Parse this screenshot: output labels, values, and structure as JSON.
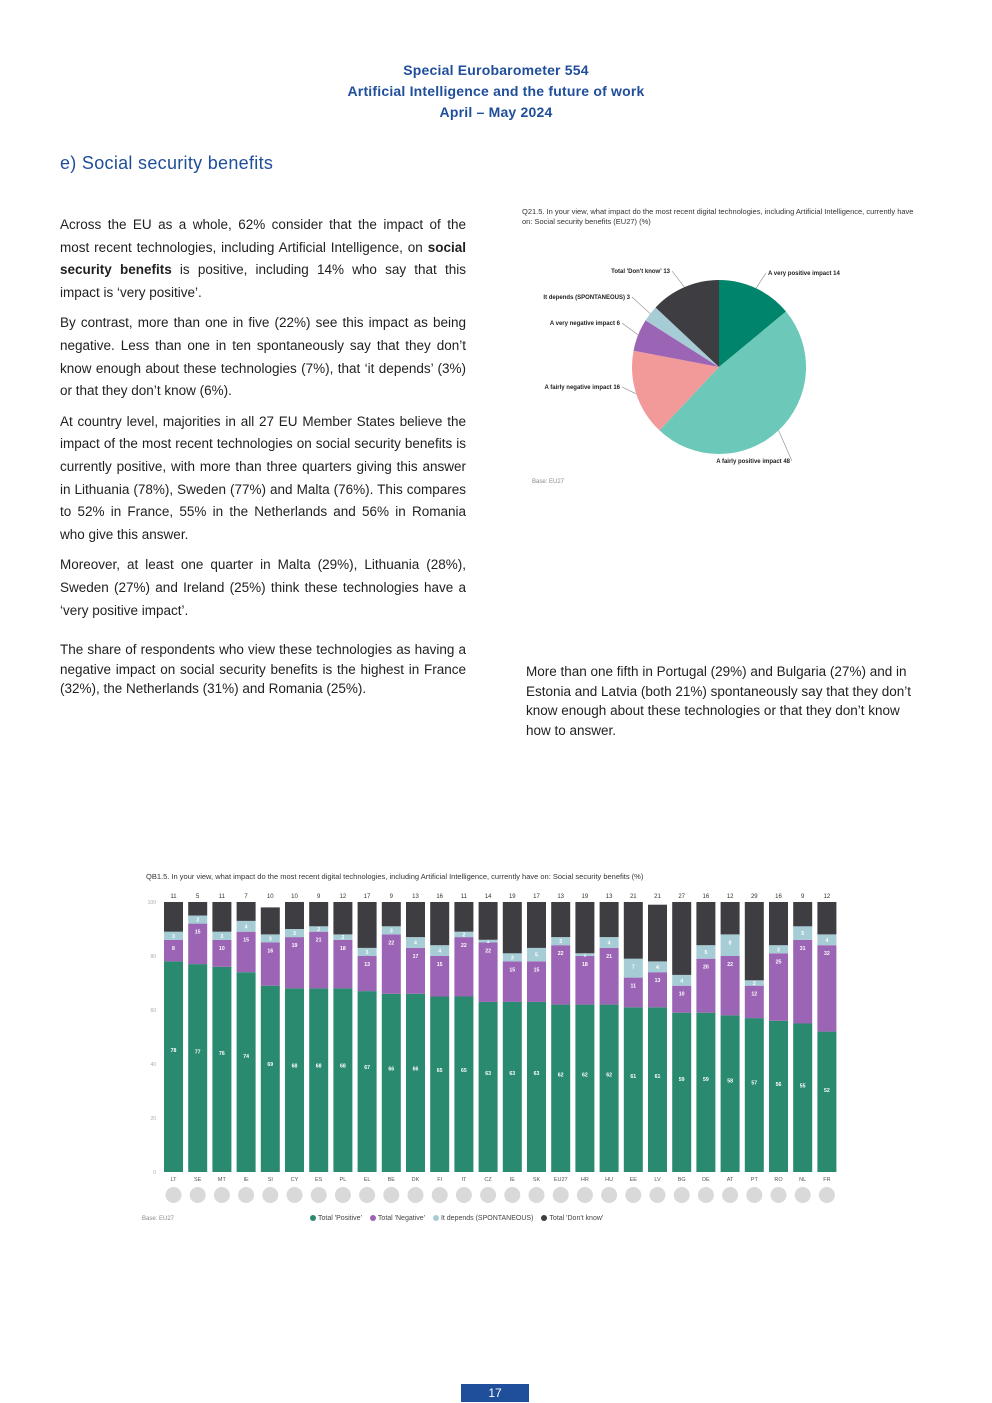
{
  "header": {
    "line1": "Special Eurobarometer 554",
    "line2": "Artificial Intelligence and the future of work",
    "line3": "April – May 2024"
  },
  "section_title": "e)  Social security benefits",
  "paragraphs": {
    "p1_before": "Across the EU as a whole, 62% consider that the impact of the most recent technologies, including Artificial Intelligence, on ",
    "p1_bold": "social security benefits",
    "p1_after": " is positive, including 14% who say that this impact is ‘very positive’.",
    "p2": "By contrast, more than one in five (22%) see this impact as being negative. Less than one in ten spontaneously say that they don’t know enough about these technologies (7%), that ‘it depends’ (3%) or that they don’t know (6%).",
    "p3": "At country level, majorities in all 27 EU Member States believe the impact of the most recent technologies on social security benefits is currently positive, with more than three quarters giving this answer in Lithuania (78%), Sweden (77%) and Malta (76%). This compares to 52% in France, 55% in the Netherlands and 56% in Romania who give this answer.",
    "p4": "Moreover, at least one quarter in Malta (29%), Lithuania (28%), Sweden (27%) and Ireland (25%) think these technologies have a ‘very positive impact’.",
    "p5": "The share of respondents who view these technologies as having a negative impact on social security benefits is the highest in France (32%), the Netherlands (31%) and Romania (25%).",
    "p6": "More than one fifth in Portugal (29%) and Bulgaria (27%) and in Estonia and Latvia (both 21%) spontaneously say that they don’t know enough about these technologies or that they don’t know how to answer."
  },
  "pie_title": "Q21.5. In your view, what impact do the most recent digital technologies, including Artificial Intelligence, currently have on: Social security benefits (EU27) (%)",
  "pie_source": "Base: EU27",
  "bar_title": "QB1.5. In your view, what impact do the most recent digital technologies, including Artificial Intelligence, currently have on: Social security benefits (%)",
  "bar_source": "Base: EU27",
  "page_number": "17",
  "colors": {
    "positive": "#2a8a70",
    "very_positive": "#00846c",
    "fairly_positive": "#6cc8b8",
    "negative": "#9b64b4",
    "fairly_negative": "#f29a9a",
    "very_negative": "#9b64b4",
    "depends": "#a6ccd6",
    "dont_know": "#3e3d42",
    "brand": "#1f4e9a"
  },
  "chart_data": [
    {
      "type": "pie",
      "slices": [
        {
          "label": "A very positive impact",
          "value": 14,
          "color": "#00846c"
        },
        {
          "label": "A fairly positive impact",
          "value": 48,
          "color": "#6cc8b8"
        },
        {
          "label": "A fairly negative impact",
          "value": 16,
          "color": "#f29a9a"
        },
        {
          "label": "A very negative impact",
          "value": 6,
          "color": "#9b64b4"
        },
        {
          "label": "It depends (SPONTANEOUS)",
          "value": 3,
          "color": "#a6ccd6"
        },
        {
          "label": "Total 'Don't know'",
          "value": 13,
          "color": "#3e3d42"
        }
      ]
    },
    {
      "type": "bar",
      "stacked": true,
      "ylim": [
        0,
        100
      ],
      "yticks": [
        "100",
        "80",
        "60",
        "40",
        "20",
        "0"
      ],
      "categories": [
        "LT",
        "SE",
        "MT",
        "IE",
        "SI",
        "CY",
        "ES",
        "PL",
        "EL",
        "BE",
        "DK",
        "FI",
        "IT",
        "CZ",
        "IE",
        "SK",
        "EU27",
        "HR",
        "HU",
        "EE",
        "LV",
        "BG",
        "DE",
        "AT",
        "PT",
        "RO",
        "NL",
        "FR"
      ],
      "series": [
        {
          "name": "Total 'Positive'",
          "color": "#2a8a70",
          "values": [
            78,
            77,
            76,
            74,
            69,
            68,
            68,
            68,
            67,
            66,
            66,
            65,
            65,
            63,
            63,
            63,
            62,
            62,
            62,
            61,
            61,
            59,
            59,
            58,
            57,
            56,
            55,
            52
          ]
        },
        {
          "name": "Total 'Negative'",
          "color": "#9b64b4",
          "values": [
            8,
            15,
            10,
            15,
            16,
            19,
            21,
            18,
            13,
            22,
            17,
            15,
            22,
            22,
            15,
            15,
            22,
            18,
            21,
            11,
            13,
            10,
            20,
            22,
            12,
            25,
            31,
            32
          ]
        },
        {
          "name": "It depends (SPONTANEOUS)",
          "color": "#a6ccd6",
          "values": [
            3,
            3,
            3,
            4,
            3,
            3,
            2,
            2,
            3,
            3,
            4,
            4,
            2,
            1,
            3,
            5,
            3,
            1,
            4,
            7,
            4,
            4,
            5,
            8,
            2,
            3,
            5,
            4
          ]
        },
        {
          "name": "Total 'Don't know'",
          "color": "#3e3d42",
          "values": [
            11,
            5,
            11,
            7,
            10,
            10,
            9,
            12,
            17,
            9,
            13,
            16,
            11,
            14,
            19,
            17,
            13,
            19,
            13,
            21,
            21,
            27,
            16,
            12,
            29,
            16,
            9,
            12
          ]
        }
      ],
      "legend": "bottom"
    }
  ]
}
